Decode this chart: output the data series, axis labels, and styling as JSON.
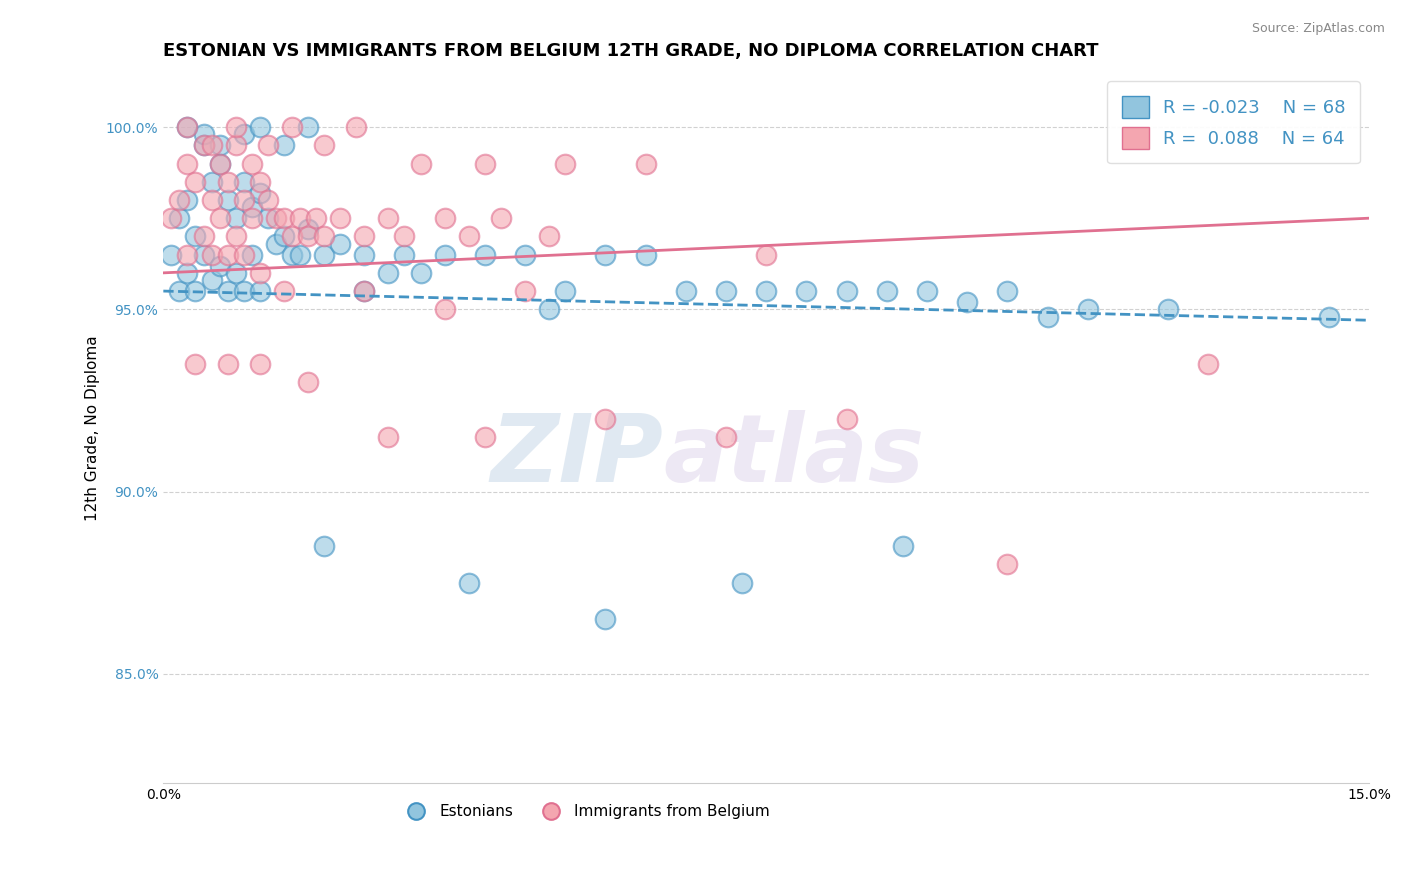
{
  "title": "ESTONIAN VS IMMIGRANTS FROM BELGIUM 12TH GRADE, NO DIPLOMA CORRELATION CHART",
  "source": "Source: ZipAtlas.com",
  "ylabel_label": "12th Grade, No Diploma",
  "xlim": [
    0.0,
    15.0
  ],
  "ylim": [
    82.0,
    101.5
  ],
  "ytick_positions": [
    85.0,
    90.0,
    95.0,
    100.0
  ],
  "xtick_positions": [
    0.0,
    15.0
  ],
  "blue_color": "#92c5de",
  "pink_color": "#f4a6b0",
  "blue_edge_color": "#4393c3",
  "pink_edge_color": "#e07090",
  "blue_line_color": "#4393c3",
  "pink_line_color": "#e07090",
  "legend_r_blue": "R = -0.023",
  "legend_n_blue": "N = 68",
  "legend_r_pink": "R =  0.088",
  "legend_n_pink": "N = 64",
  "legend_label_blue": "Estonians",
  "legend_label_pink": "Immigrants from Belgium",
  "blue_scatter_x": [
    0.1,
    0.2,
    0.2,
    0.3,
    0.3,
    0.4,
    0.4,
    0.5,
    0.5,
    0.6,
    0.6,
    0.7,
    0.7,
    0.8,
    0.8,
    0.9,
    0.9,
    1.0,
    1.0,
    1.1,
    1.1,
    1.2,
    1.2,
    1.3,
    1.4,
    1.5,
    1.6,
    1.7,
    1.8,
    2.0,
    2.2,
    2.5,
    2.8,
    3.0,
    3.5,
    4.0,
    4.5,
    5.0,
    5.5,
    6.5,
    7.5,
    8.0,
    9.0,
    10.0,
    11.0,
    12.5,
    14.5,
    0.3,
    0.5,
    0.7,
    1.0,
    1.2,
    1.5,
    1.8,
    2.5,
    3.2,
    4.8,
    6.0,
    7.0,
    8.5,
    9.5,
    10.5,
    11.5,
    2.0,
    3.8,
    5.5,
    7.2,
    9.2
  ],
  "blue_scatter_y": [
    96.5,
    97.5,
    95.5,
    98.0,
    96.0,
    97.0,
    95.5,
    99.5,
    96.5,
    98.5,
    95.8,
    99.0,
    96.2,
    98.0,
    95.5,
    97.5,
    96.0,
    98.5,
    95.5,
    97.8,
    96.5,
    98.2,
    95.5,
    97.5,
    96.8,
    97.0,
    96.5,
    96.5,
    97.2,
    96.5,
    96.8,
    96.5,
    96.0,
    96.5,
    96.5,
    96.5,
    96.5,
    95.5,
    96.5,
    95.5,
    95.5,
    95.5,
    95.5,
    95.2,
    94.8,
    95.0,
    94.8,
    100.0,
    99.8,
    99.5,
    99.8,
    100.0,
    99.5,
    100.0,
    95.5,
    96.0,
    95.0,
    96.5,
    95.5,
    95.5,
    95.5,
    95.5,
    95.0,
    88.5,
    87.5,
    86.5,
    87.5,
    88.5
  ],
  "pink_scatter_x": [
    0.1,
    0.2,
    0.3,
    0.3,
    0.4,
    0.5,
    0.5,
    0.6,
    0.6,
    0.7,
    0.7,
    0.8,
    0.8,
    0.9,
    0.9,
    1.0,
    1.0,
    1.1,
    1.1,
    1.2,
    1.2,
    1.3,
    1.4,
    1.5,
    1.6,
    1.7,
    1.8,
    1.9,
    2.0,
    2.2,
    2.5,
    2.8,
    3.0,
    3.5,
    3.8,
    4.2,
    4.8,
    0.3,
    0.6,
    0.9,
    1.3,
    1.6,
    2.0,
    2.4,
    3.2,
    4.0,
    5.0,
    6.0,
    1.5,
    2.5,
    3.5,
    4.5,
    7.5,
    13.0,
    0.4,
    0.8,
    1.2,
    1.8,
    2.8,
    4.0,
    5.5,
    7.0,
    8.5,
    10.5
  ],
  "pink_scatter_y": [
    97.5,
    98.0,
    99.0,
    96.5,
    98.5,
    99.5,
    97.0,
    98.0,
    96.5,
    99.0,
    97.5,
    98.5,
    96.5,
    99.5,
    97.0,
    98.0,
    96.5,
    99.0,
    97.5,
    98.5,
    96.0,
    98.0,
    97.5,
    97.5,
    97.0,
    97.5,
    97.0,
    97.5,
    97.0,
    97.5,
    97.0,
    97.5,
    97.0,
    97.5,
    97.0,
    97.5,
    97.0,
    100.0,
    99.5,
    100.0,
    99.5,
    100.0,
    99.5,
    100.0,
    99.0,
    99.0,
    99.0,
    99.0,
    95.5,
    95.5,
    95.0,
    95.5,
    96.5,
    93.5,
    93.5,
    93.5,
    93.5,
    93.0,
    91.5,
    91.5,
    92.0,
    91.5,
    92.0,
    88.0
  ],
  "watermark_text": "ZIP",
  "watermark_text2": "atlas",
  "title_fontsize": 13,
  "axis_label_fontsize": 11,
  "tick_fontsize": 10,
  "legend_fontsize": 13
}
